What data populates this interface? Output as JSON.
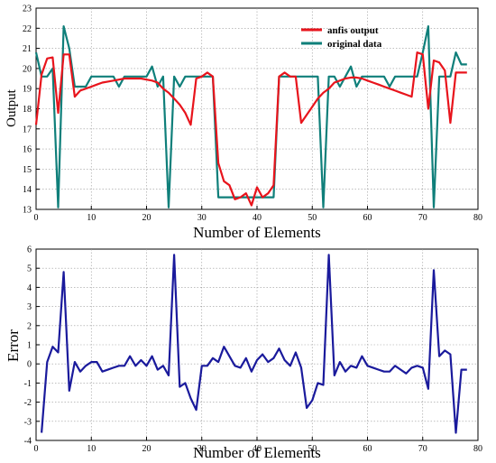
{
  "chart_data": [
    {
      "type": "line",
      "title": "",
      "xlabel": "Number of Elements",
      "ylabel": "Output",
      "xlim": [
        0,
        80
      ],
      "ylim": [
        13,
        23
      ],
      "xticks": [
        "0",
        "10",
        "20",
        "30",
        "40",
        "50",
        "60",
        "70",
        "80"
      ],
      "yticks": [
        "13",
        "14",
        "15",
        "16",
        "17",
        "18",
        "19",
        "20",
        "21",
        "22",
        "23"
      ],
      "grid": "dotted",
      "legend_position": "top-right",
      "series": [
        {
          "name": "anfis output",
          "color": "#e8141c",
          "x": [
            0,
            1,
            2,
            3,
            4,
            5,
            6,
            7,
            8,
            9,
            10,
            11,
            12,
            13,
            14,
            15,
            16,
            17,
            18,
            19,
            20,
            21,
            22,
            23,
            24,
            25,
            26,
            27,
            28,
            29,
            30,
            31,
            32,
            33,
            34,
            35,
            36,
            37,
            38,
            39,
            40,
            41,
            42,
            43,
            44,
            45,
            46,
            47,
            48,
            49,
            50,
            51,
            52,
            53,
            54,
            55,
            56,
            57,
            58,
            59,
            60,
            61,
            62,
            63,
            64,
            65,
            66,
            67,
            68,
            69,
            70,
            71,
            72,
            73,
            74,
            75,
            76,
            77,
            78
          ],
          "values": [
            17.2,
            19.7,
            20.5,
            20.55,
            17.8,
            20.7,
            20.7,
            18.6,
            18.9,
            19.0,
            19.1,
            19.2,
            19.3,
            19.35,
            19.4,
            19.45,
            19.5,
            19.5,
            19.5,
            19.5,
            19.45,
            19.4,
            19.3,
            19.0,
            18.8,
            18.5,
            18.2,
            17.8,
            17.2,
            19.5,
            19.6,
            19.8,
            19.6,
            15.3,
            14.4,
            14.2,
            13.5,
            13.6,
            13.8,
            13.2,
            14.1,
            13.6,
            13.8,
            14.2,
            19.6,
            19.8,
            19.6,
            19.6,
            17.3,
            17.7,
            18.1,
            18.5,
            18.8,
            19.0,
            19.3,
            19.4,
            19.5,
            19.55,
            19.55,
            19.5,
            19.4,
            19.3,
            19.2,
            19.1,
            19.0,
            18.9,
            18.8,
            18.7,
            18.6,
            20.8,
            20.7,
            18.0,
            20.4,
            20.3,
            19.9,
            17.3,
            19.8,
            19.8,
            19.8
          ],
          "note_x_range": "series ends near x=78"
        },
        {
          "name": "original data",
          "color": "#0f7f7a",
          "x": [
            0,
            1,
            2,
            3,
            4,
            5,
            6,
            7,
            8,
            9,
            10,
            11,
            12,
            13,
            14,
            15,
            16,
            17,
            18,
            19,
            20,
            21,
            22,
            23,
            24,
            25,
            26,
            27,
            28,
            29,
            30,
            31,
            32,
            33,
            34,
            35,
            36,
            37,
            38,
            39,
            40,
            41,
            42,
            43,
            44,
            45,
            46,
            47,
            48,
            49,
            50,
            51,
            52,
            53,
            54,
            55,
            56,
            57,
            58,
            59,
            60,
            61,
            62,
            63,
            64,
            65,
            66,
            67,
            68,
            69,
            70,
            71,
            72,
            73,
            74,
            75,
            76,
            77,
            78
          ],
          "values": [
            20.8,
            19.6,
            19.6,
            20.0,
            13.1,
            22.1,
            21.0,
            19.1,
            19.1,
            19.1,
            19.6,
            19.6,
            19.6,
            19.6,
            19.6,
            19.1,
            19.6,
            19.6,
            19.6,
            19.6,
            19.6,
            20.1,
            19.1,
            19.6,
            13.1,
            19.6,
            19.1,
            19.6,
            19.6,
            19.6,
            19.6,
            19.6,
            19.6,
            13.6,
            13.6,
            13.6,
            13.6,
            13.6,
            13.6,
            13.6,
            13.6,
            13.6,
            13.6,
            13.6,
            19.6,
            19.6,
            19.6,
            19.6,
            19.6,
            19.6,
            19.6,
            19.6,
            13.1,
            19.6,
            19.6,
            19.1,
            19.6,
            20.1,
            19.1,
            19.6,
            19.6,
            19.6,
            19.6,
            19.6,
            19.1,
            19.6,
            19.6,
            19.6,
            19.6,
            19.6,
            20.8,
            22.1,
            13.1,
            19.6,
            19.6,
            19.6,
            20.8,
            20.2,
            20.2
          ]
        }
      ]
    },
    {
      "type": "line",
      "title": "",
      "xlabel": "Number of Elements",
      "ylabel": "Error",
      "xlim": [
        0,
        80
      ],
      "ylim": [
        -4,
        6
      ],
      "xticks": [
        "0",
        "10",
        "20",
        "30",
        "40",
        "50",
        "60",
        "70",
        "80"
      ],
      "yticks": [
        "-4",
        "-3",
        "-2",
        "-1",
        "0",
        "1",
        "2",
        "3",
        "4",
        "5",
        "6"
      ],
      "grid": "dotted",
      "series": [
        {
          "name": "",
          "color": "#1a1a9c",
          "x": [
            1,
            2,
            3,
            4,
            5,
            6,
            7,
            8,
            9,
            10,
            11,
            12,
            13,
            14,
            15,
            16,
            17,
            18,
            19,
            20,
            21,
            22,
            23,
            24,
            25,
            26,
            27,
            28,
            29,
            30,
            31,
            32,
            33,
            34,
            35,
            36,
            37,
            38,
            39,
            40,
            41,
            42,
            43,
            44,
            45,
            46,
            47,
            48,
            49,
            50,
            51,
            52,
            53,
            54,
            55,
            56,
            57,
            58,
            59,
            60,
            61,
            62,
            63,
            64,
            65,
            66,
            67,
            68,
            69,
            70,
            71,
            72,
            73,
            74,
            75,
            76,
            77,
            78
          ],
          "values": [
            -3.6,
            0.1,
            0.9,
            0.6,
            4.8,
            -1.4,
            0.1,
            -0.4,
            -0.1,
            0.1,
            0.1,
            -0.4,
            -0.3,
            -0.2,
            -0.1,
            -0.1,
            0.4,
            -0.1,
            0.2,
            -0.1,
            0.4,
            -0.3,
            -0.1,
            -0.6,
            5.7,
            -1.2,
            -1.0,
            -1.8,
            -2.4,
            -0.1,
            -0.1,
            0.3,
            0.1,
            0.9,
            0.4,
            -0.1,
            -0.2,
            0.3,
            -0.4,
            0.2,
            0.5,
            0.1,
            0.3,
            0.8,
            0.2,
            -0.1,
            0.6,
            -0.2,
            -2.3,
            -1.9,
            -1.0,
            -1.1,
            5.7,
            -0.6,
            0.1,
            -0.4,
            -0.1,
            -0.2,
            0.4,
            -0.1,
            -0.2,
            -0.3,
            -0.4,
            -0.4,
            -0.1,
            -0.3,
            -0.5,
            -0.2,
            -0.1,
            -0.2,
            -1.3,
            4.9,
            0.4,
            0.7,
            0.5,
            -3.6,
            -0.3,
            -0.3
          ]
        }
      ]
    }
  ]
}
